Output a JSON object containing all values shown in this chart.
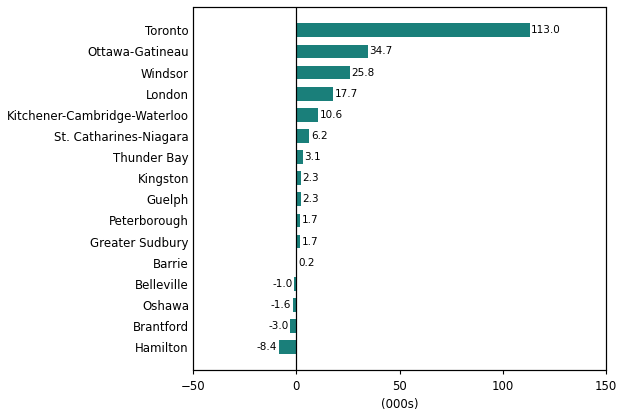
{
  "categories": [
    "Hamilton",
    "Brantford",
    "Oshawa",
    "Belleville",
    "Barrie",
    "Greater Sudbury",
    "Peterborough",
    "Guelph",
    "Kingston",
    "Thunder Bay",
    "St. Catharines-Niagara",
    "Kitchener-Cambridge-Waterloo",
    "London",
    "Windsor",
    "Ottawa-Gatineau",
    "Toronto"
  ],
  "values": [
    -8.4,
    -3.0,
    -1.6,
    -1.0,
    0.2,
    1.7,
    1.7,
    2.3,
    2.3,
    3.1,
    6.2,
    10.6,
    17.7,
    25.8,
    34.7,
    113.0
  ],
  "bar_color": "#1a7f7a",
  "xlabel": "(000s)",
  "xlim": [
    -50,
    150
  ],
  "xticks": [
    -50,
    0,
    50,
    100,
    150
  ],
  "value_fontsize": 7.5,
  "label_fontsize": 8.5,
  "xlabel_fontsize": 8.5,
  "tick_fontsize": 8.5,
  "bar_height": 0.65,
  "background_color": "#ffffff"
}
